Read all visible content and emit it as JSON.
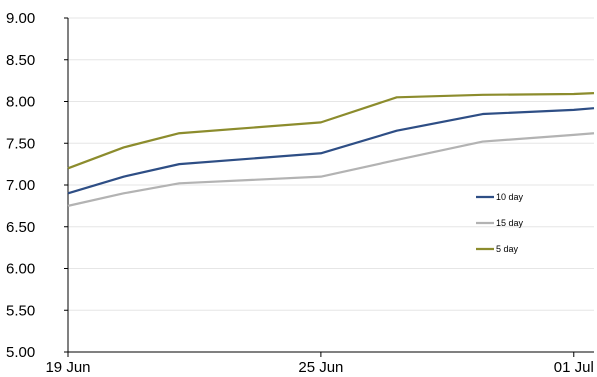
{
  "chart_data": {
    "type": "line",
    "title": "",
    "xlabel": "",
    "ylabel": "",
    "ylim": [
      5.0,
      9.0
    ],
    "yticks": [
      "5.00",
      "5.50",
      "6.00",
      "6.50",
      "7.00",
      "7.50",
      "8.00",
      "8.50",
      "9.00"
    ],
    "x": [
      "19 Jun",
      "21 Jun",
      "23 Jun",
      "25 Jun",
      "27 Jun",
      "29 Jun",
      "01 Jul",
      "02 Jul"
    ],
    "x_positions": [
      0,
      0.22,
      0.44,
      1.0,
      1.3,
      1.64,
      2.0,
      2.08
    ],
    "xticks": [
      {
        "label": "19 Jun",
        "pos": 0
      },
      {
        "label": "25 Jun",
        "pos": 1.0
      },
      {
        "label": "01 Jul",
        "pos": 2.0
      }
    ],
    "grid": "horizontal",
    "legend": "right",
    "series": [
      {
        "name": "10 day",
        "color": "#2e4e85",
        "values": [
          6.9,
          7.1,
          7.25,
          7.38,
          7.65,
          7.85,
          7.9,
          7.92
        ]
      },
      {
        "name": "15 day",
        "color": "#b3b3b3",
        "values": [
          6.75,
          6.9,
          7.02,
          7.1,
          7.3,
          7.52,
          7.6,
          7.62
        ]
      },
      {
        "name": "5 day",
        "color": "#8c8c2d",
        "values": [
          7.2,
          7.45,
          7.62,
          7.75,
          8.05,
          8.08,
          8.09,
          8.1
        ]
      }
    ]
  }
}
